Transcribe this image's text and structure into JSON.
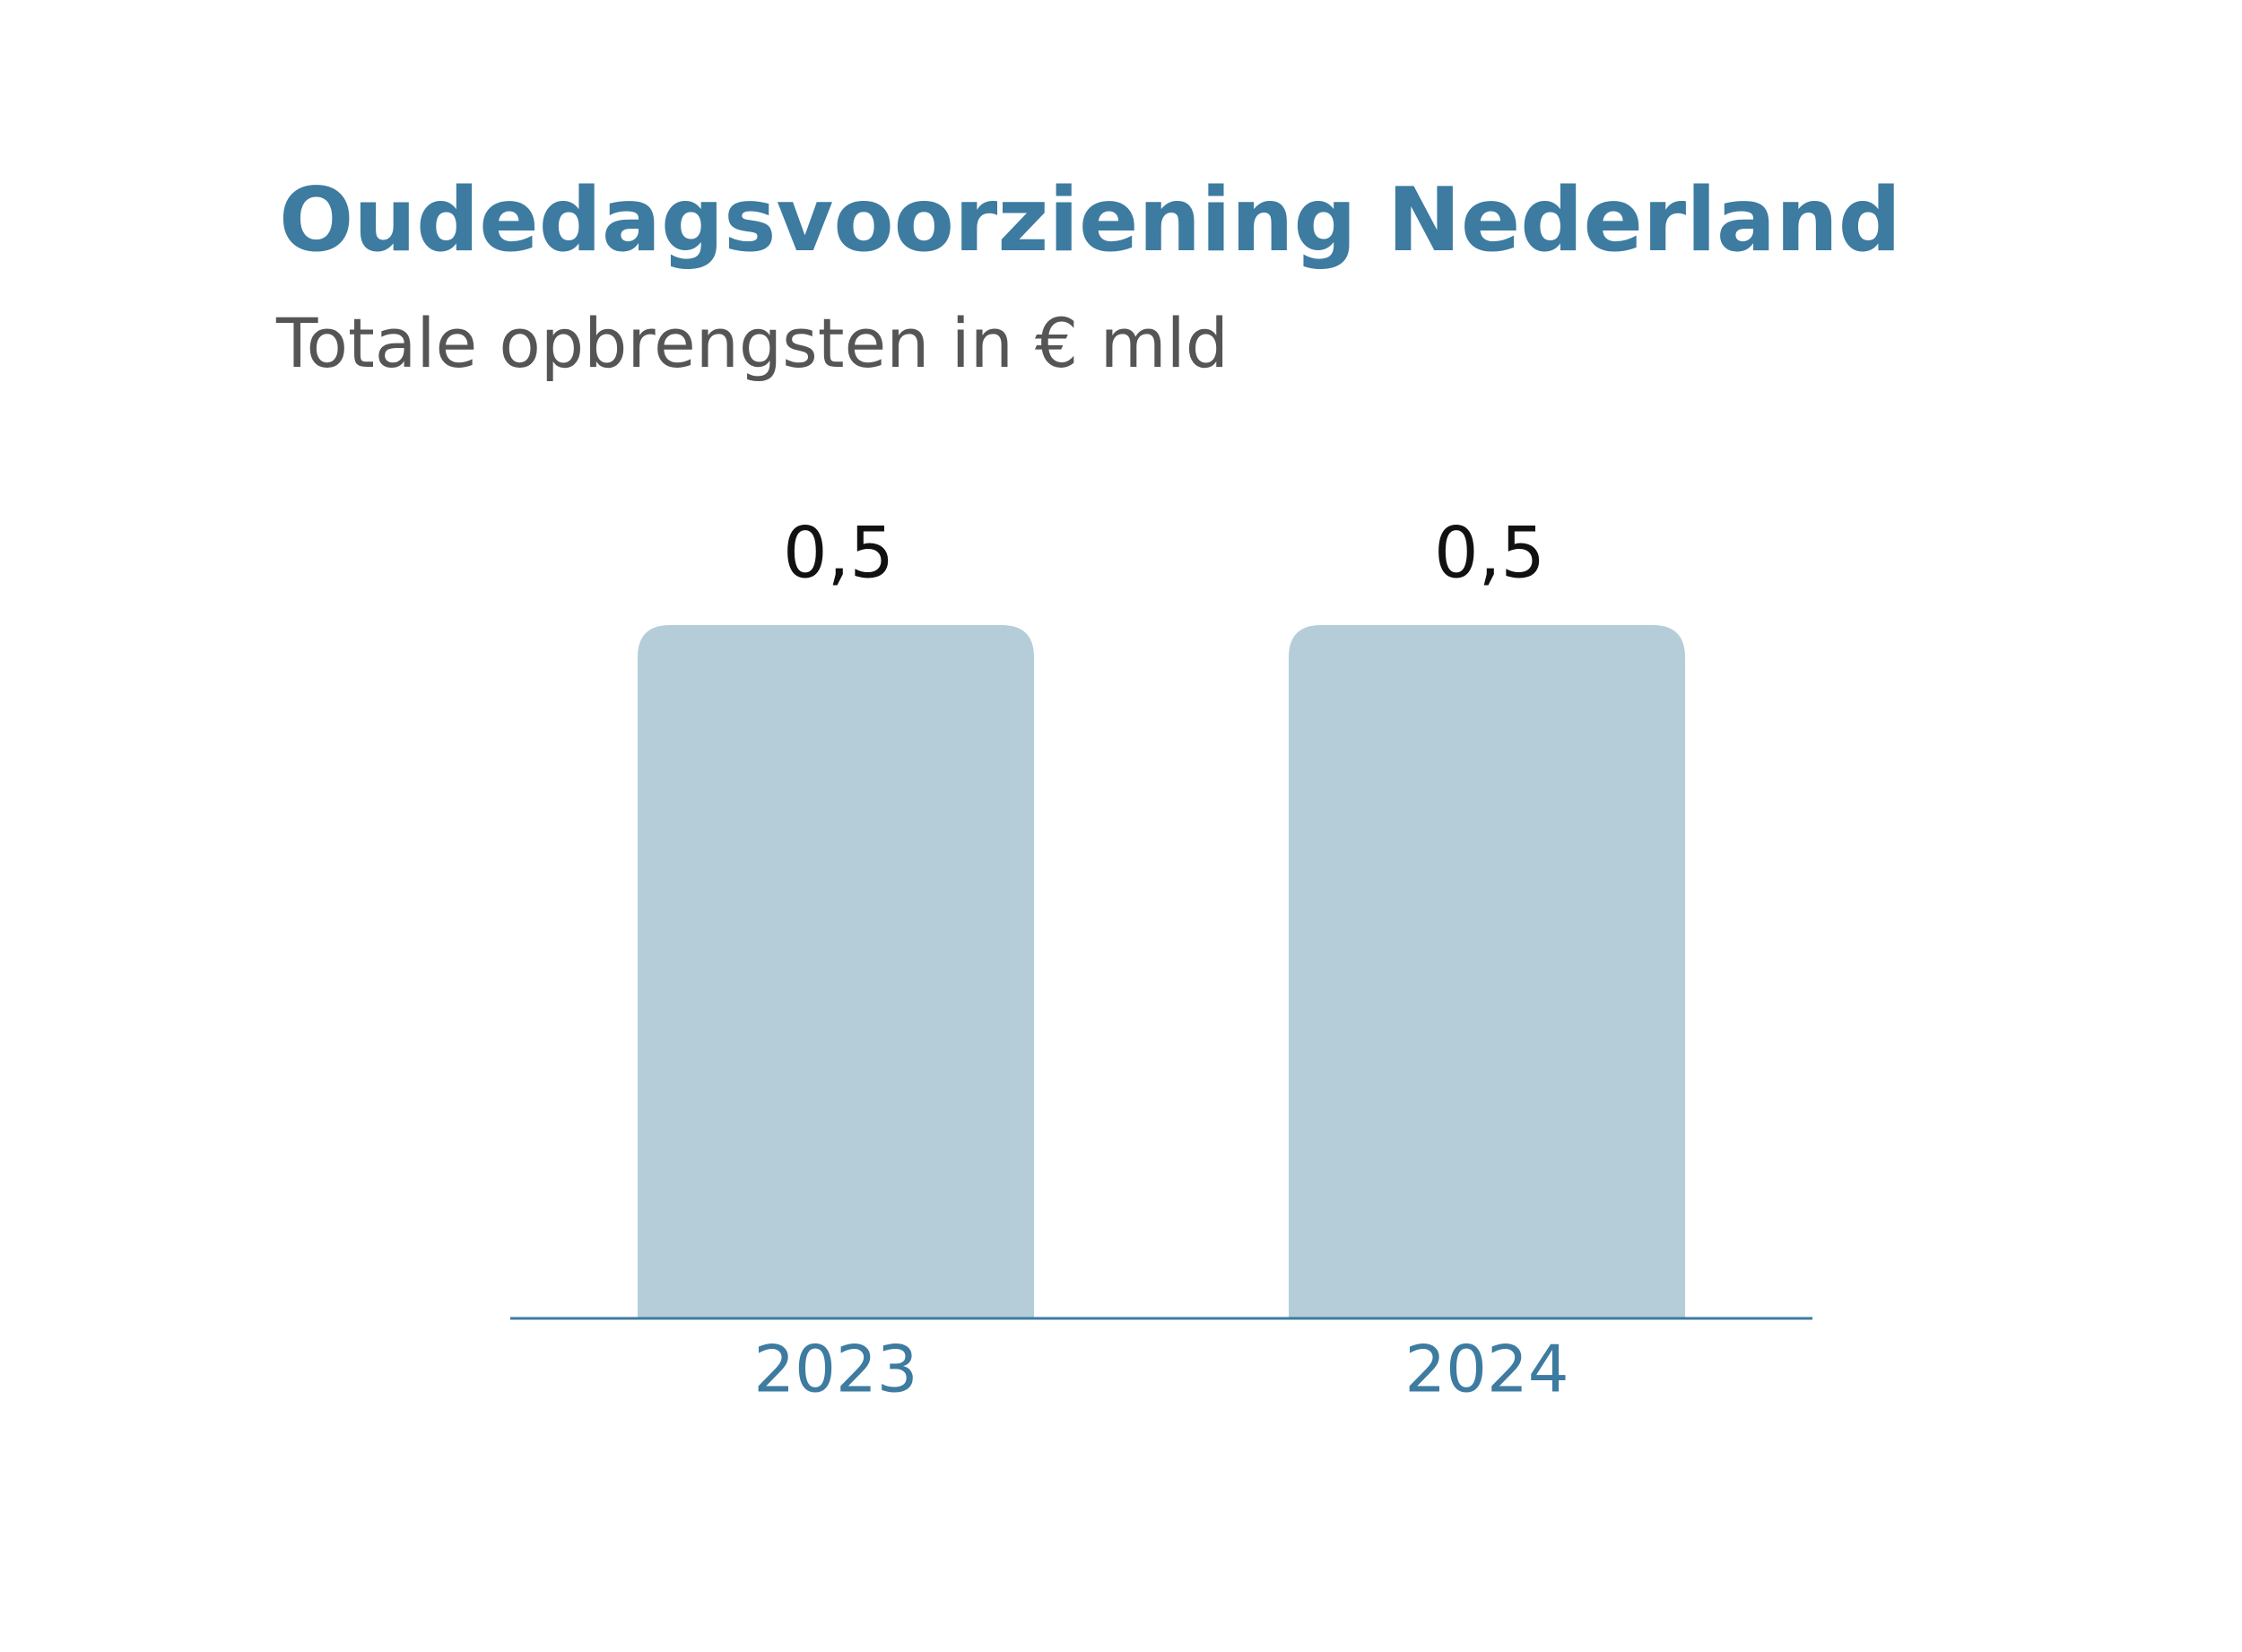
{
  "chart_data": {
    "type": "bar",
    "title": "Oudedagsvoorziening Nederland",
    "subtitle": "Totale opbrengsten in € mld",
    "categories": [
      "2023",
      "2024"
    ],
    "values": [
      0.5,
      0.5
    ],
    "value_labels": [
      "0,5",
      "0,5"
    ],
    "color": "#b4cdd9"
  }
}
